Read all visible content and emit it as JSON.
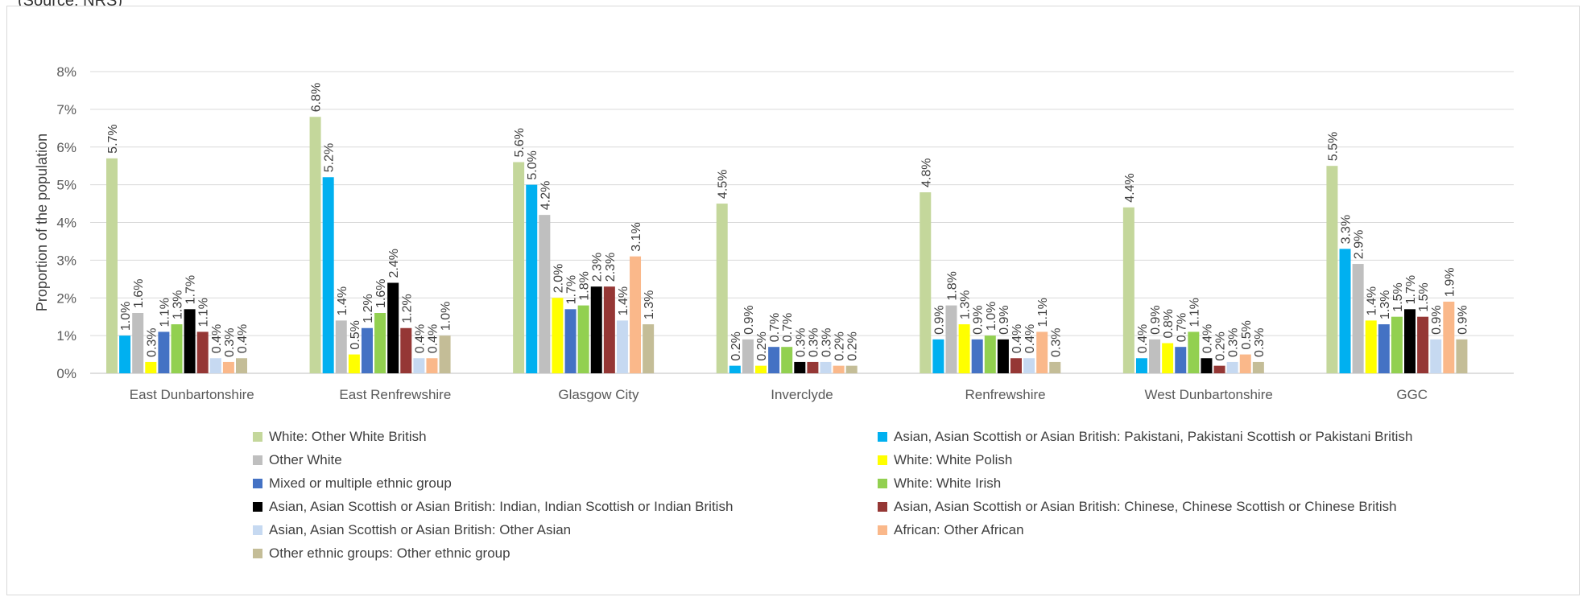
{
  "caption": "(Source: NRS)",
  "chart_data": {
    "type": "bar",
    "ylabel": "Proportion of the population",
    "ylim": [
      0,
      8
    ],
    "yticks": [
      "0%",
      "1%",
      "2%",
      "3%",
      "4%",
      "5%",
      "6%",
      "7%",
      "8%"
    ],
    "grid": true,
    "legend": "bottom",
    "categories": [
      "East Dunbartonshire",
      "East Renfrewshire",
      "Glasgow City",
      "Inverclyde",
      "Renfrewshire",
      "West Dunbartonshire",
      "GGC"
    ],
    "series": [
      {
        "name": "White: Other White British",
        "color": "#c4d79b",
        "values": [
          5.7,
          6.8,
          5.6,
          4.5,
          4.8,
          4.4,
          5.5
        ],
        "labels": [
          "5.7%",
          "6.8%",
          "5.6%",
          "4.5%",
          "4.8%",
          "4.4%",
          "5.5%"
        ]
      },
      {
        "name": "Asian, Asian Scottish or Asian British: Pakistani, Pakistani Scottish or Pakistani British",
        "color": "#00b0f0",
        "values": [
          1.0,
          5.2,
          5.0,
          0.2,
          0.9,
          0.4,
          3.3
        ],
        "labels": [
          "1.0%",
          "5.2%",
          "5.0%",
          "0.2%",
          "0.9%",
          "0.4%",
          "3.3%"
        ]
      },
      {
        "name": "Other White",
        "color": "#bfbfbf",
        "values": [
          1.6,
          1.4,
          4.2,
          0.9,
          1.8,
          0.9,
          2.9
        ],
        "labels": [
          "1.6%",
          "1.4%",
          "4.2%",
          "0.9%",
          "1.8%",
          "0.9%",
          "2.9%"
        ]
      },
      {
        "name": "White: White Polish",
        "color": "#ffff00",
        "values": [
          0.3,
          0.5,
          2.0,
          0.2,
          1.3,
          0.8,
          1.4
        ],
        "labels": [
          "0.3%",
          "0.5%",
          "2.0%",
          "0.2%",
          "1.3%",
          "0.8%",
          "1.4%"
        ]
      },
      {
        "name": "Mixed or multiple ethnic group",
        "color": "#4472c4",
        "values": [
          1.1,
          1.2,
          1.7,
          0.7,
          0.9,
          0.7,
          1.3
        ],
        "labels": [
          "1.1%",
          "1.2%",
          "1.7%",
          "0.7%",
          "0.9%",
          "0.7%",
          "1.3%"
        ]
      },
      {
        "name": "White: White Irish",
        "color": "#92d050",
        "values": [
          1.3,
          1.6,
          1.8,
          0.7,
          1.0,
          1.1,
          1.5
        ],
        "labels": [
          "1.3%",
          "1.6%",
          "1.8%",
          "0.7%",
          "1.0%",
          "1.1%",
          "1.5%"
        ]
      },
      {
        "name": "Asian, Asian Scottish or Asian British: Indian, Indian Scottish or Indian British",
        "color": "#000000",
        "values": [
          1.7,
          2.4,
          2.3,
          0.3,
          0.9,
          0.4,
          1.7
        ],
        "labels": [
          "1.7%",
          "2.4%",
          "2.3%",
          "0.3%",
          "0.9%",
          "0.4%",
          "1.7%"
        ]
      },
      {
        "name": "Asian, Asian Scottish or Asian British: Chinese, Chinese Scottish or Chinese British",
        "color": "#953735",
        "values": [
          1.1,
          1.2,
          2.3,
          0.3,
          0.4,
          0.2,
          1.5
        ],
        "labels": [
          "1.1%",
          "1.2%",
          "2.3%",
          "0.3%",
          "0.4%",
          "0.2%",
          "1.5%"
        ]
      },
      {
        "name": "Asian, Asian Scottish or Asian British: Other Asian",
        "color": "#c6d9f1",
        "values": [
          0.4,
          0.4,
          1.4,
          0.3,
          0.4,
          0.3,
          0.9
        ],
        "labels": [
          "0.4%",
          "0.4%",
          "1.4%",
          "0.3%",
          "0.4%",
          "0.3%",
          "0.9%"
        ]
      },
      {
        "name": "African: Other African",
        "color": "#fab88a",
        "values": [
          0.3,
          0.4,
          3.1,
          0.2,
          1.1,
          0.5,
          1.9
        ],
        "labels": [
          "0.3%",
          "0.4%",
          "3.1%",
          "0.2%",
          "1.1%",
          "0.5%",
          "1.9%"
        ]
      },
      {
        "name": "Other ethnic groups: Other ethnic group",
        "color": "#c4bd97",
        "values": [
          0.4,
          1.0,
          1.3,
          0.2,
          0.3,
          0.3,
          0.9
        ],
        "labels": [
          "0.4%",
          "1.0%",
          "1.3%",
          "0.2%",
          "0.3%",
          "0.3%",
          "0.9%"
        ]
      }
    ]
  }
}
